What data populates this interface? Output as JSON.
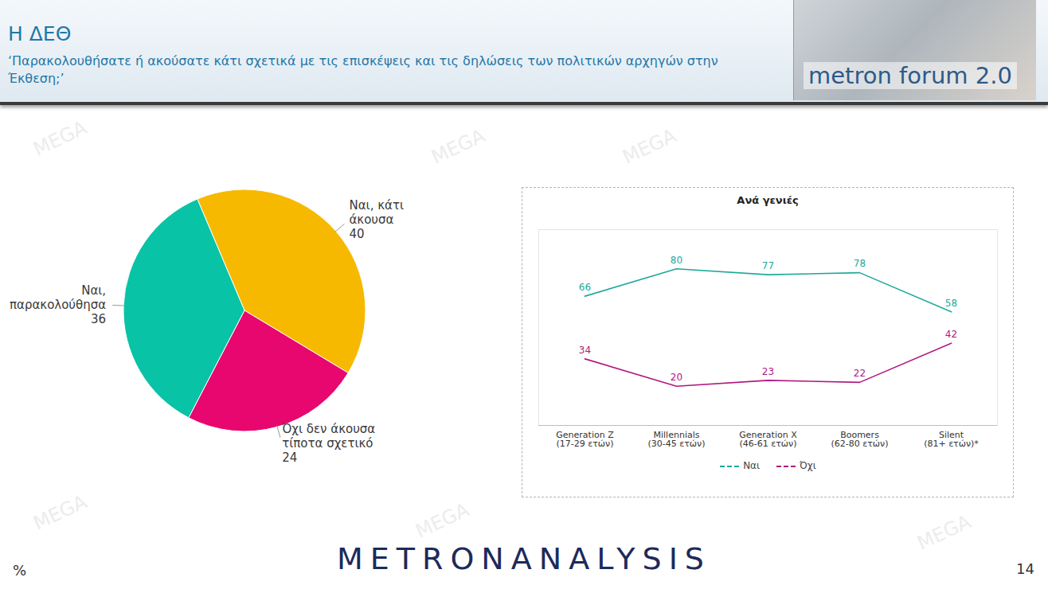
{
  "page": {
    "title": "Η ΔΕΘ",
    "subtitle": "‘Παρακολουθήσατε ή ακούσατε κάτι σχετικά με τις επισκέψεις και τις δηλώσεις των πολιτικών αρχηγών στην Έκθεση;’",
    "logo": "metron forum 2.0",
    "footer": "METRONANALYSIS",
    "unit": "%",
    "page_number": 14,
    "watermark": "MEGA"
  },
  "chart_data": [
    {
      "type": "pie",
      "categories": [
        "Ναι, κάτι άκουσα",
        "Όχι δεν άκουσα τίποτα σχετικό",
        "Ναι, παρακολούθησα"
      ],
      "values": [
        40,
        24,
        36
      ],
      "colors": [
        "#f7b900",
        "#e8066f",
        "#08c3a6"
      ],
      "data_labels": true,
      "tick_labels": false
    },
    {
      "type": "line",
      "title": "Ανά γενιές",
      "categories": [
        "Generation Z (17-29 ετών)",
        "Millennials (30-45 ετών)",
        "Generation X (46-61 ετών)",
        "Boomers (62-80 ετών)",
        "Silent (81+ ετών)*"
      ],
      "series": [
        {
          "name": "Ναι",
          "color": "#1fa99a",
          "values": [
            66,
            80,
            77,
            78,
            58
          ]
        },
        {
          "name": "Όχι",
          "color": "#b0197e",
          "values": [
            34,
            20,
            23,
            22,
            42
          ]
        }
      ],
      "ylim": [
        0,
        100
      ],
      "data_labels": true,
      "tick_labels": "x",
      "legend": "bottom"
    }
  ]
}
